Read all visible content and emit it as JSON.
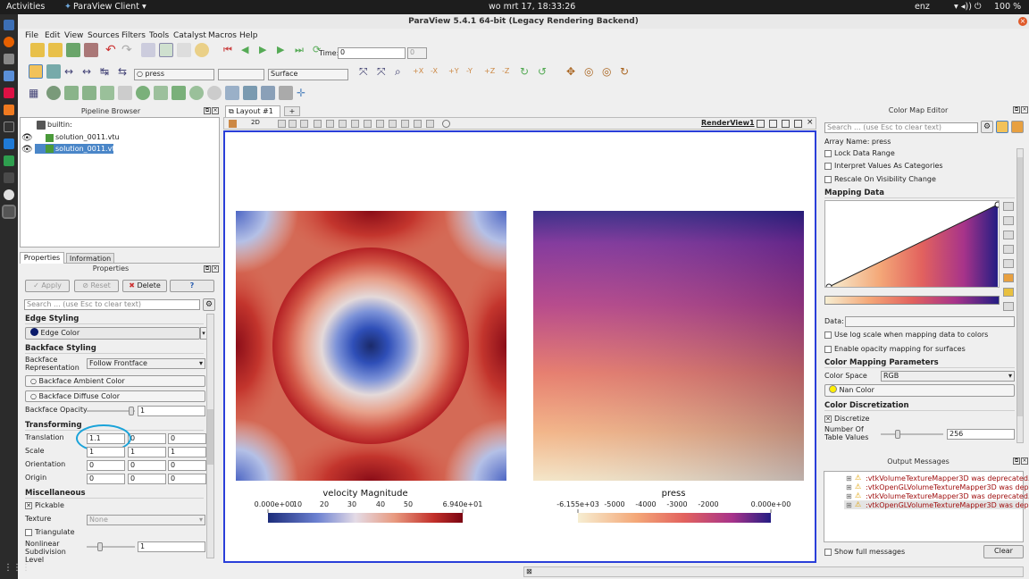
{
  "topbar": {
    "activities": "Activities",
    "app_menu": "ParaView Client",
    "clock": "wo mrt 17, 18:33:26",
    "lang": "enz",
    "battery": "100 %"
  },
  "window": {
    "title": "ParaView 5.4.1 64-bit (Legacy Rendering Backend)"
  },
  "menu": [
    "File",
    "Edit",
    "View",
    "Sources",
    "Filters",
    "Tools",
    "Catalyst",
    "Macros",
    "Help"
  ],
  "toolbar": {
    "time_label": "Time:",
    "time_value": "0",
    "time_index": "0",
    "array_select": "press",
    "representation_select": "Surface"
  },
  "pipeline": {
    "title": "Pipeline Browser",
    "root": "builtin:",
    "items": [
      "solution_0011.vtu",
      "solution_0011.vtu"
    ]
  },
  "tabs": {
    "properties": "Properties",
    "information": "Information"
  },
  "properties": {
    "title": "Properties",
    "apply": "Apply",
    "reset": "Reset",
    "delete": "Delete",
    "help": "?",
    "search_placeholder": "Search ... (use Esc to clear text)",
    "edge_styling": "Edge Styling",
    "edge_color": "Edge Color",
    "backface_styling": "Backface Styling",
    "backface_rep_label": "Backface Representation",
    "backface_rep_value": "Follow Frontface",
    "backface_ambient": "Backface Ambient Color",
    "backface_diffuse": "Backface Diffuse Color",
    "backface_opacity_label": "Backface Opacity",
    "backface_opacity_value": "1",
    "transforming": "Transforming",
    "translation_label": "Translation",
    "translation": [
      "1.1",
      "0",
      "0"
    ],
    "scale_label": "Scale",
    "scale": [
      "1",
      "1",
      "1"
    ],
    "orientation_label": "Orientation",
    "orientation": [
      "0",
      "0",
      "0"
    ],
    "origin_label": "Origin",
    "origin": [
      "0",
      "0",
      "0"
    ],
    "misc": "Miscellaneous",
    "pickable": "Pickable",
    "texture_label": "Texture",
    "texture_value": "None",
    "triangulate": "Triangulate",
    "nonlinear_label": "Nonlinear Subdivision Level",
    "nonlinear_value": "1"
  },
  "layout": {
    "tab": "Layout #1",
    "add_tab": "+",
    "view_name": "RenderView1",
    "btn_2d": "2D"
  },
  "colorbars": {
    "left": {
      "title": "velocity Magnitude",
      "ticks": [
        "0.000e+00",
        "10",
        "20",
        "30",
        "40",
        "50",
        "6.940e+01"
      ]
    },
    "right": {
      "title": "press",
      "ticks": [
        "-6.155e+03",
        "-5000",
        "-4000",
        "-3000",
        "-2000",
        "0.000e+00"
      ]
    }
  },
  "cme": {
    "title": "Color Map Editor",
    "search_placeholder": "Search ... (use Esc to clear text)",
    "array_name": "Array Name: press",
    "lock": "Lock Data Range",
    "interpret": "Interpret Values As Categories",
    "rescale": "Rescale On Visibility Change",
    "mapping_data": "Mapping Data",
    "data_label": "Data:",
    "log_scale": "Use log scale when mapping data to colors",
    "opacity_mapping": "Enable opacity mapping for surfaces",
    "cmp": "Color Mapping Parameters",
    "color_space_label": "Color Space",
    "color_space_value": "RGB",
    "nan_color": "Nan Color",
    "discretization": "Color Discretization",
    "discretize": "Discretize",
    "table_values_label": "Number Of Table Values",
    "table_values": "256"
  },
  "output": {
    "title": "Output Messages",
    "messages": [
      ":vtkVolumeTextureMapper3D was deprecated...",
      ":vtkOpenGLVolumeTextureMapper3D was dep...",
      ":vtkVolumeTextureMapper3D was deprecated...",
      ":vtkOpenGLVolumeTextureMapper3D was dep..."
    ],
    "show_full": "Show full messages",
    "clear": "Clear"
  },
  "colors": {
    "accent": "#1f86d6",
    "highlight": "#4a90d9",
    "annotation": "#1aa3d9",
    "border_view": "#2a3fd9"
  }
}
